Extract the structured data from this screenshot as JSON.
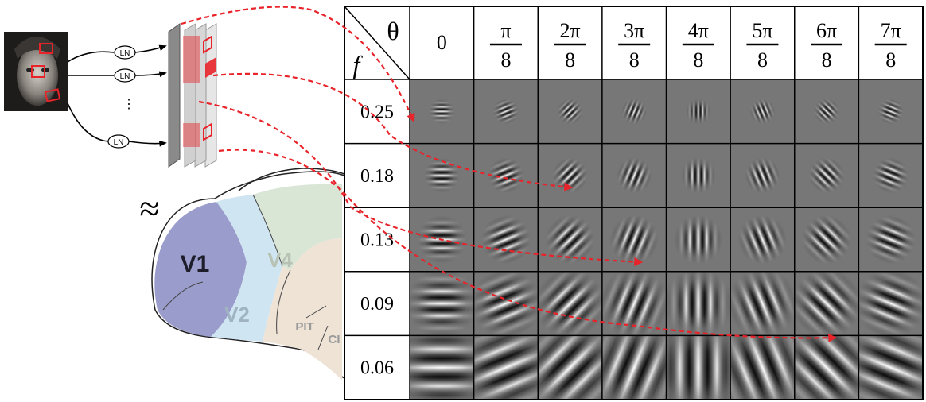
{
  "table": {
    "corner": {
      "theta": "θ",
      "f": "f"
    },
    "columns": [
      {
        "numerator": "0"
      },
      {
        "numerator": "π",
        "denominator": "8"
      },
      {
        "numerator": "2π",
        "denominator": "8"
      },
      {
        "numerator": "3π",
        "denominator": "8"
      },
      {
        "numerator": "4π",
        "denominator": "8"
      },
      {
        "numerator": "5π",
        "denominator": "8"
      },
      {
        "numerator": "6π",
        "denominator": "8"
      },
      {
        "numerator": "7π",
        "denominator": "8"
      }
    ],
    "rows": [
      "0.25",
      "0.18",
      "0.13",
      "0.09",
      "0.06"
    ]
  },
  "pipeline": {
    "nodes": [
      "LN",
      "LN",
      "LN"
    ],
    "ellipsis": "⋮",
    "approx": "≈"
  },
  "brain": {
    "areas": [
      "V1",
      "V2",
      "V4",
      "PIT",
      "CI"
    ]
  }
}
